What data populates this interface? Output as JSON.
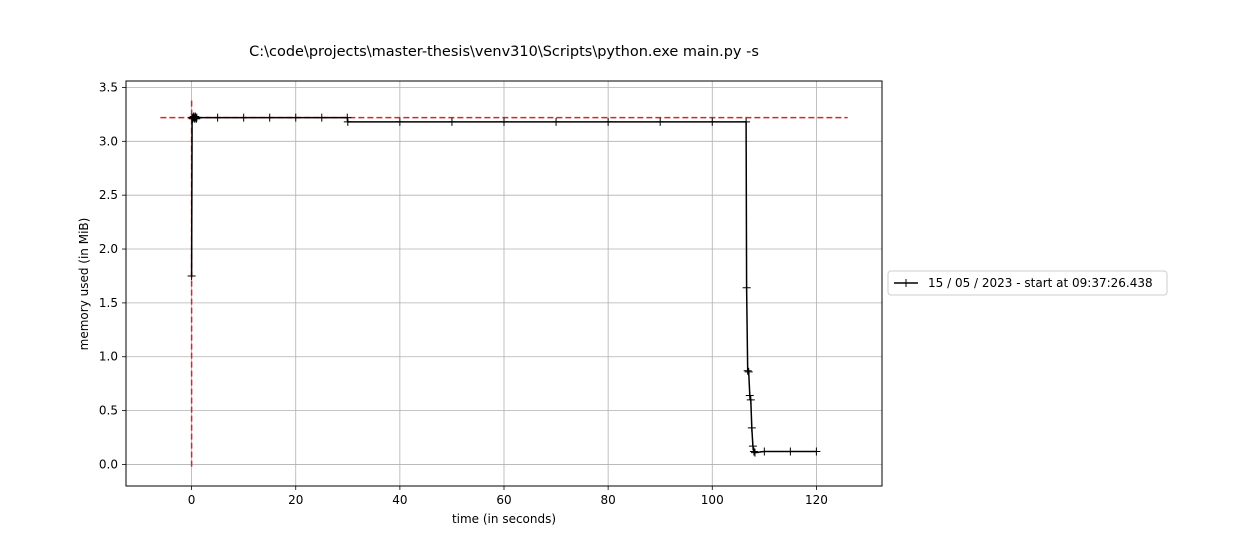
{
  "chart_data": {
    "type": "line",
    "title": "C:\\code\\projects\\master-thesis\\venv310\\Scripts\\python.exe main.py -s",
    "xlabel": "time (in seconds)",
    "ylabel": "memory used (in MiB)",
    "xlim": [
      -12.6,
      132.6
    ],
    "ylim": [
      -0.2,
      3.56
    ],
    "xticks": [
      0,
      20,
      40,
      60,
      80,
      100,
      120
    ],
    "xtick_labels": [
      "0",
      "20",
      "40",
      "60",
      "80",
      "100",
      "120"
    ],
    "yticks": [
      0.0,
      0.5,
      1.0,
      1.5,
      2.0,
      2.5,
      3.0,
      3.5
    ],
    "ytick_labels": [
      "0.0",
      "0.5",
      "1.0",
      "1.5",
      "2.0",
      "2.5",
      "3.0",
      "3.5"
    ],
    "grid": true,
    "legend_position": "right-outside",
    "series": [
      {
        "name": "15 / 05 / 2023 - start at 09:37:26.438",
        "color": "#000000",
        "marker": "plus",
        "x": [
          0.0,
          0.1,
          0.2,
          0.3,
          0.4,
          0.5,
          0.6,
          0.7,
          0.8,
          0.9,
          1.0,
          5.0,
          10.0,
          15.0,
          20.0,
          25.0,
          29.9,
          30.0,
          40.0,
          50.0,
          60.0,
          70.0,
          80.0,
          90.0,
          100.0,
          106.5,
          106.6,
          106.8,
          107.0,
          107.2,
          107.4,
          107.6,
          107.8,
          108.0,
          108.2,
          110.0,
          115.0,
          120.0
        ],
        "y": [
          1.75,
          3.22,
          3.21,
          3.22,
          3.23,
          3.22,
          3.21,
          3.23,
          3.22,
          3.21,
          3.22,
          3.22,
          3.22,
          3.22,
          3.22,
          3.22,
          3.22,
          3.18,
          3.18,
          3.18,
          3.18,
          3.18,
          3.18,
          3.18,
          3.18,
          3.18,
          1.64,
          0.87,
          0.86,
          0.64,
          0.6,
          0.34,
          0.17,
          0.12,
          0.11,
          0.12,
          0.12,
          0.12
        ]
      }
    ],
    "reference_lines": [
      {
        "orientation": "horizontal",
        "value": 3.22,
        "from": -6,
        "to": 126,
        "color": "#d62728",
        "style": "dashed"
      },
      {
        "orientation": "vertical",
        "value": 0,
        "from": -0.02,
        "to": 3.38,
        "color": "#d62728",
        "style": "dashed"
      }
    ]
  }
}
